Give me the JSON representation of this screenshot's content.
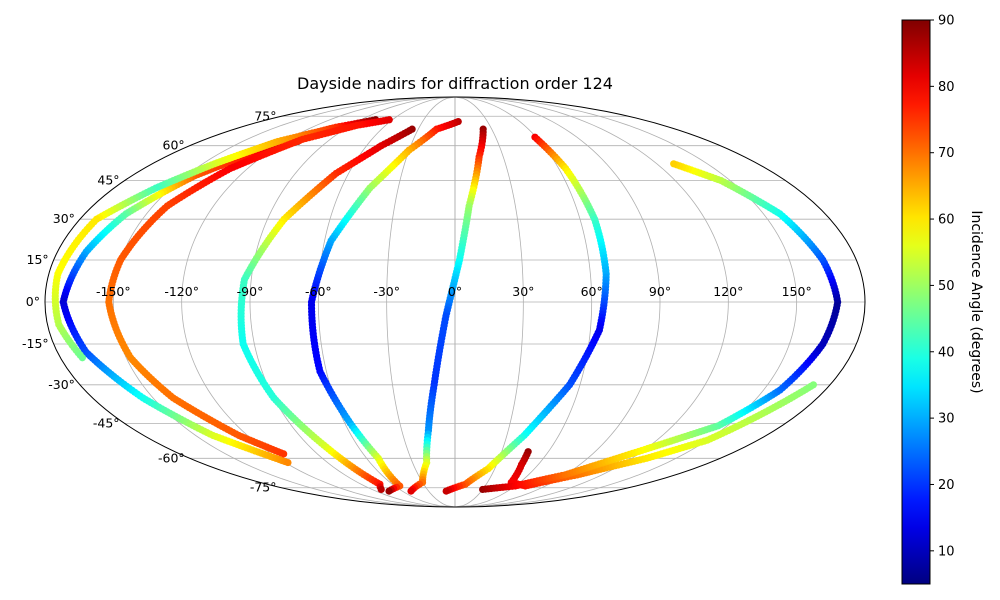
{
  "chart_data": {
    "type": "scatter",
    "projection": "mollweide",
    "title": "Dayside nadirs for diffraction order 124",
    "xlabel": "",
    "ylabel": "",
    "x_unit": "degrees longitude",
    "y_unit": "degrees latitude",
    "xlim": [
      -180,
      180
    ],
    "ylim": [
      -90,
      90
    ],
    "grid": true,
    "lon_ticks": [
      -150,
      -120,
      -90,
      -60,
      -30,
      0,
      30,
      60,
      90,
      120,
      150
    ],
    "lat_ticks": [
      -75,
      -60,
      -45,
      -30,
      -15,
      0,
      15,
      30,
      45,
      60,
      75
    ],
    "lon_tick_labels": [
      "-150°",
      "-120°",
      "-90°",
      "-60°",
      "-30°",
      "0°",
      "30°",
      "60°",
      "90°",
      "120°",
      "150°"
    ],
    "lat_tick_labels": [
      "-75°",
      "-60°",
      "-45°",
      "-30°",
      "-15°",
      "0°",
      "15°",
      "30°",
      "45°",
      "60°",
      "75°"
    ],
    "colormap": "jet",
    "colorbar": {
      "label": "Incidence Angle (degrees)",
      "vmin": 5,
      "vmax": 90,
      "ticks": [
        10,
        20,
        30,
        40,
        50,
        60,
        70,
        80,
        90
      ],
      "tick_labels": [
        "10",
        "20",
        "30",
        "40",
        "50",
        "60",
        "70",
        "80",
        "90"
      ]
    },
    "color_value_name": "incidence angle",
    "tracks": [
      {
        "points": [
          {
            "lon": -111,
            "lat": 62,
            "c": 90
          },
          {
            "lon": -130,
            "lat": 56,
            "c": 78
          },
          {
            "lon": -145,
            "lat": 47,
            "c": 72
          },
          {
            "lon": -160,
            "lat": 32,
            "c": 45
          },
          {
            "lon": -167,
            "lat": 18,
            "c": 30
          },
          {
            "lon": -172,
            "lat": 0,
            "c": 12
          },
          {
            "lon": -167,
            "lat": -18,
            "c": 22
          },
          {
            "lon": -155,
            "lat": -35,
            "c": 38
          },
          {
            "lon": -140,
            "lat": -50,
            "c": 55
          },
          {
            "lon": -118,
            "lat": -62,
            "c": 68
          }
        ]
      },
      {
        "points": [
          {
            "lon": -76,
            "lat": 73,
            "c": 90
          },
          {
            "lon": -100,
            "lat": 69,
            "c": 76
          },
          {
            "lon": -125,
            "lat": 62,
            "c": 65
          },
          {
            "lon": -143,
            "lat": 52,
            "c": 55
          },
          {
            "lon": -158,
            "lat": 42,
            "c": 42
          },
          {
            "lon": -172,
            "lat": 30,
            "c": 60
          },
          {
            "lon": -176,
            "lat": 10,
            "c": 58
          },
          {
            "lon": -175,
            "lat": -8,
            "c": 52
          },
          {
            "lon": -170,
            "lat": -20,
            "c": 46
          }
        ]
      },
      {
        "points": [
          {
            "lon": -63,
            "lat": 73,
            "c": 82
          },
          {
            "lon": -85,
            "lat": 70,
            "c": 78
          },
          {
            "lon": -110,
            "lat": 63,
            "c": 76
          },
          {
            "lon": -130,
            "lat": 50,
            "c": 80
          },
          {
            "lon": -143,
            "lat": 35,
            "c": 74
          },
          {
            "lon": -150,
            "lat": 15,
            "c": 72
          },
          {
            "lon": -152,
            "lat": 0,
            "c": 70
          },
          {
            "lon": -148,
            "lat": -20,
            "c": 68
          },
          {
            "lon": -140,
            "lat": -35,
            "c": 70
          },
          {
            "lon": -125,
            "lat": -50,
            "c": 72
          },
          {
            "lon": -112,
            "lat": -58,
            "c": 75
          }
        ]
      },
      {
        "points": [
          {
            "lon": -35,
            "lat": 68,
            "c": 88
          },
          {
            "lon": -50,
            "lat": 60,
            "c": 82
          },
          {
            "lon": -67,
            "lat": 48,
            "c": 76
          },
          {
            "lon": -82,
            "lat": 30,
            "c": 60
          },
          {
            "lon": -93,
            "lat": 8,
            "c": 42
          },
          {
            "lon": -95,
            "lat": -15,
            "c": 38
          },
          {
            "lon": -90,
            "lat": -35,
            "c": 40
          },
          {
            "lon": -80,
            "lat": -55,
            "c": 55
          },
          {
            "lon": -72,
            "lat": -73,
            "c": 78
          },
          {
            "lon": -80,
            "lat": -76,
            "c": 85
          }
        ]
      },
      {
        "points": [
          {
            "lon": 3,
            "lat": 72,
            "c": 85
          },
          {
            "lon": -15,
            "lat": 68,
            "c": 78
          },
          {
            "lon": -30,
            "lat": 58,
            "c": 65
          },
          {
            "lon": -45,
            "lat": 42,
            "c": 50
          },
          {
            "lon": -57,
            "lat": 22,
            "c": 30
          },
          {
            "lon": -63,
            "lat": 0,
            "c": 14
          },
          {
            "lon": -63,
            "lat": -25,
            "c": 16
          },
          {
            "lon": -57,
            "lat": -45,
            "c": 30
          },
          {
            "lon": -52,
            "lat": -60,
            "c": 55
          },
          {
            "lon": -55,
            "lat": -74,
            "c": 72
          },
          {
            "lon": -75,
            "lat": -77,
            "c": 88
          }
        ]
      },
      {
        "points": [
          {
            "lon": 23,
            "lat": 68,
            "c": 88
          },
          {
            "lon": 15,
            "lat": 55,
            "c": 76
          },
          {
            "lon": 7,
            "lat": 35,
            "c": 50
          },
          {
            "lon": 2,
            "lat": 15,
            "c": 38
          },
          {
            "lon": -4,
            "lat": -5,
            "c": 22
          },
          {
            "lon": -10,
            "lat": -30,
            "c": 20
          },
          {
            "lon": -15,
            "lat": -48,
            "c": 28
          },
          {
            "lon": -20,
            "lat": -62,
            "c": 55
          },
          {
            "lon": -30,
            "lat": -72,
            "c": 70
          },
          {
            "lon": -50,
            "lat": -77,
            "c": 82
          }
        ]
      },
      {
        "points": [
          {
            "lon": 59,
            "lat": 64,
            "c": 80
          },
          {
            "lon": 64,
            "lat": 50,
            "c": 60
          },
          {
            "lon": 67,
            "lat": 30,
            "c": 42
          },
          {
            "lon": 67,
            "lat": 10,
            "c": 30
          },
          {
            "lon": 64,
            "lat": -10,
            "c": 14
          },
          {
            "lon": 55,
            "lat": -30,
            "c": 22
          },
          {
            "lon": 40,
            "lat": -50,
            "c": 38
          },
          {
            "lon": 25,
            "lat": -65,
            "c": 60
          },
          {
            "lon": 10,
            "lat": -73,
            "c": 72
          },
          {
            "lon": -10,
            "lat": -77,
            "c": 84
          }
        ]
      },
      {
        "points": [
          {
            "lon": 47,
            "lat": -57,
            "c": 88
          },
          {
            "lon": 48,
            "lat": -63,
            "c": 83
          },
          {
            "lon": 52,
            "lat": -72,
            "c": 80
          },
          {
            "lon": 70,
            "lat": -74,
            "c": 78
          },
          {
            "lon": 100,
            "lat": -68,
            "c": 70
          },
          {
            "lon": 130,
            "lat": -60,
            "c": 60
          },
          {
            "lon": 150,
            "lat": -52,
            "c": 55
          },
          {
            "lon": 172,
            "lat": -30,
            "c": 48
          }
        ]
      },
      {
        "points": [
          {
            "lon": 30,
            "lat": -76,
            "c": 88
          },
          {
            "lon": 60,
            "lat": -74,
            "c": 80
          },
          {
            "lon": 90,
            "lat": -68,
            "c": 70
          },
          {
            "lon": 120,
            "lat": -56,
            "c": 58
          },
          {
            "lon": 145,
            "lat": -46,
            "c": 45
          },
          {
            "lon": 158,
            "lat": -32,
            "c": 25
          },
          {
            "lon": 165,
            "lat": -15,
            "c": 10
          },
          {
            "lon": 168,
            "lat": 0,
            "c": 7
          },
          {
            "lon": 165,
            "lat": 15,
            "c": 22
          },
          {
            "lon": 158,
            "lat": 32,
            "c": 38
          },
          {
            "lon": 145,
            "lat": 45,
            "c": 52
          },
          {
            "lon": 130,
            "lat": 52,
            "c": 62
          }
        ]
      }
    ]
  }
}
